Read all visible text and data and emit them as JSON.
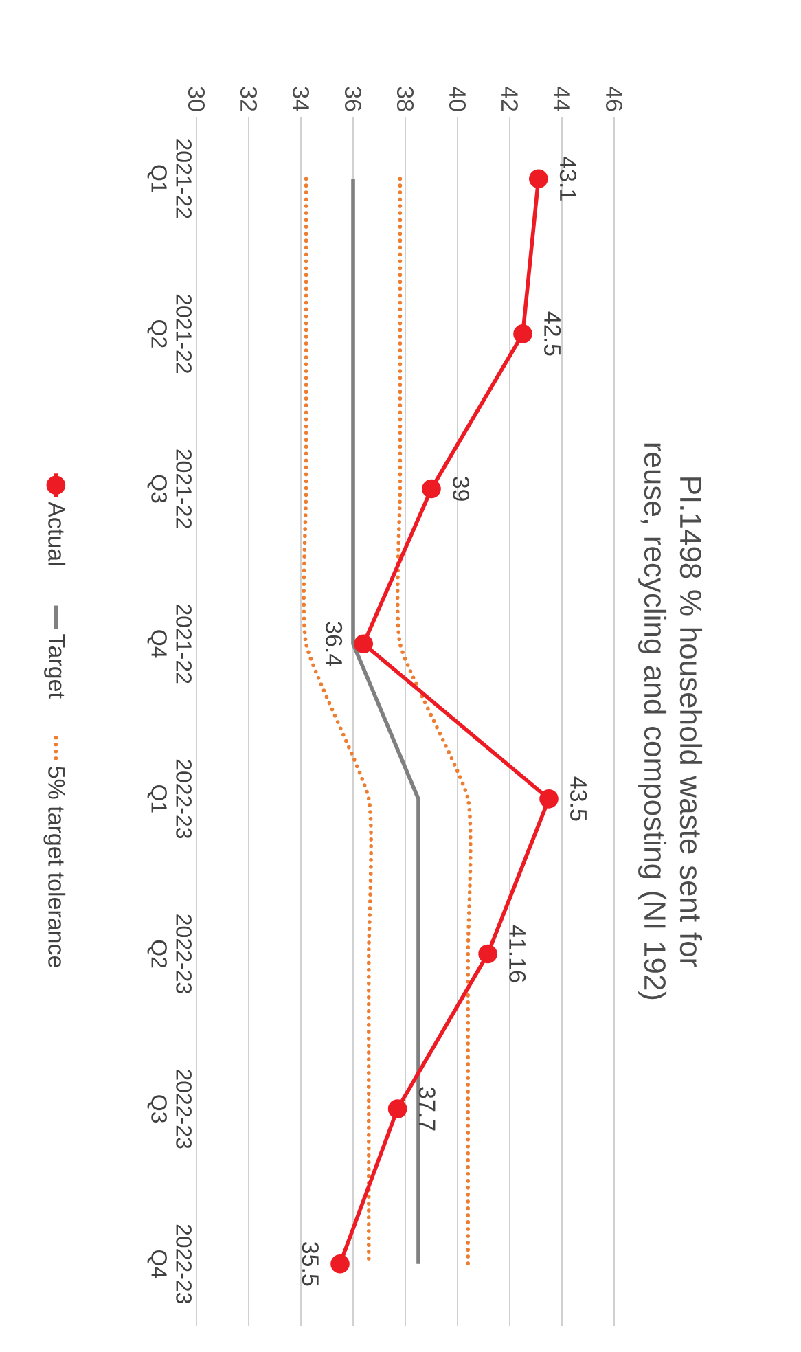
{
  "chart_data": {
    "type": "line",
    "title": "PI.1498 % household waste sent for reuse, recycling and composting (NI 192)",
    "categories": [
      "2021-22 Q1",
      "2021-22 Q2",
      "2021-22 Q3",
      "2021-22 Q4",
      "2022-23 Q1",
      "2022-23 Q2",
      "2022-23 Q3",
      "2022-23 Q4"
    ],
    "series": [
      {
        "name": "Actual",
        "color": "#ed1c24",
        "marker": "circle",
        "line_style": "solid",
        "data_labels": true,
        "values": [
          43.1,
          42.5,
          39,
          36.4,
          43.5,
          41.16,
          37.7,
          35.5
        ]
      },
      {
        "name": "Target",
        "color": "#808080",
        "marker": "none",
        "line_style": "solid",
        "values": [
          36,
          36,
          36,
          36,
          38.5,
          38.5,
          38.5,
          38.5
        ]
      },
      {
        "name": "5% target tolerance",
        "color": "#ed7d31",
        "marker": "none",
        "line_style": "dotted",
        "values": [
          37.8,
          37.8,
          37.8,
          37.8,
          40.4,
          40.4,
          40.4,
          40.4
        ]
      },
      {
        "color": "#ed7d31",
        "marker": "none",
        "line_style": "dotted",
        "values": [
          34.2,
          34.2,
          34.2,
          34.2,
          36.6,
          36.6,
          36.6,
          36.6
        ]
      }
    ],
    "orientation": "horizontal",
    "xlim": [
      30,
      46
    ],
    "xticks": [
      30,
      32,
      34,
      36,
      38,
      40,
      42,
      44,
      46
    ],
    "grid": "x",
    "legend": "left"
  }
}
